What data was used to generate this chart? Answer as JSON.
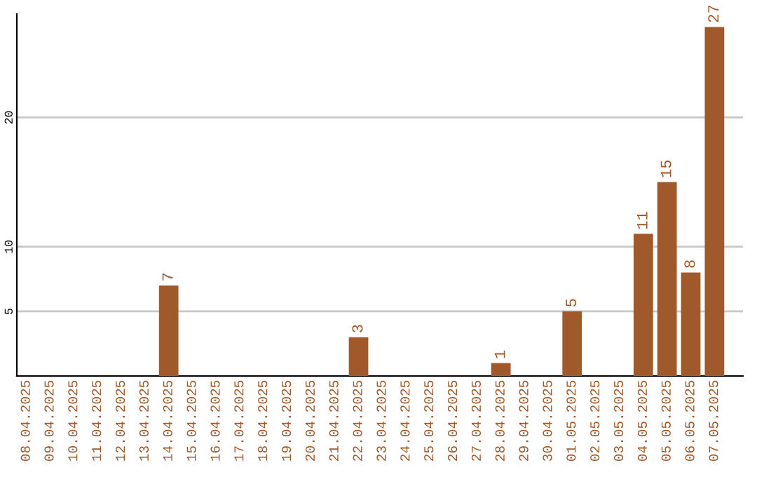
{
  "chart_data": {
    "type": "bar",
    "categories": [
      "08.04.2025",
      "09.04.2025",
      "10.04.2025",
      "11.04.2025",
      "12.04.2025",
      "13.04.2025",
      "14.04.2025",
      "15.04.2025",
      "16.04.2025",
      "17.04.2025",
      "18.04.2025",
      "19.04.2025",
      "20.04.2025",
      "21.04.2025",
      "22.04.2025",
      "23.04.2025",
      "24.04.2025",
      "25.04.2025",
      "26.04.2025",
      "27.04.2025",
      "28.04.2025",
      "29.04.2025",
      "30.04.2025",
      "01.05.2025",
      "02.05.2025",
      "03.05.2025",
      "04.05.2025",
      "05.05.2025",
      "06.05.2025",
      "07.05.2025"
    ],
    "values": [
      0,
      0,
      0,
      0,
      0,
      0,
      7,
      0,
      0,
      0,
      0,
      0,
      0,
      0,
      3,
      0,
      0,
      0,
      0,
      0,
      1,
      0,
      0,
      5,
      0,
      0,
      11,
      15,
      8,
      27
    ],
    "value_labels": [
      null,
      null,
      null,
      null,
      null,
      null,
      "7",
      null,
      null,
      null,
      null,
      null,
      null,
      null,
      "3",
      null,
      null,
      null,
      null,
      null,
      "1",
      null,
      null,
      "5",
      null,
      null,
      "11",
      "15",
      "8",
      "27"
    ],
    "color": "#a0592a",
    "ylim": [
      0,
      28
    ],
    "yticks": [
      5,
      10,
      20
    ],
    "grid": "y"
  }
}
